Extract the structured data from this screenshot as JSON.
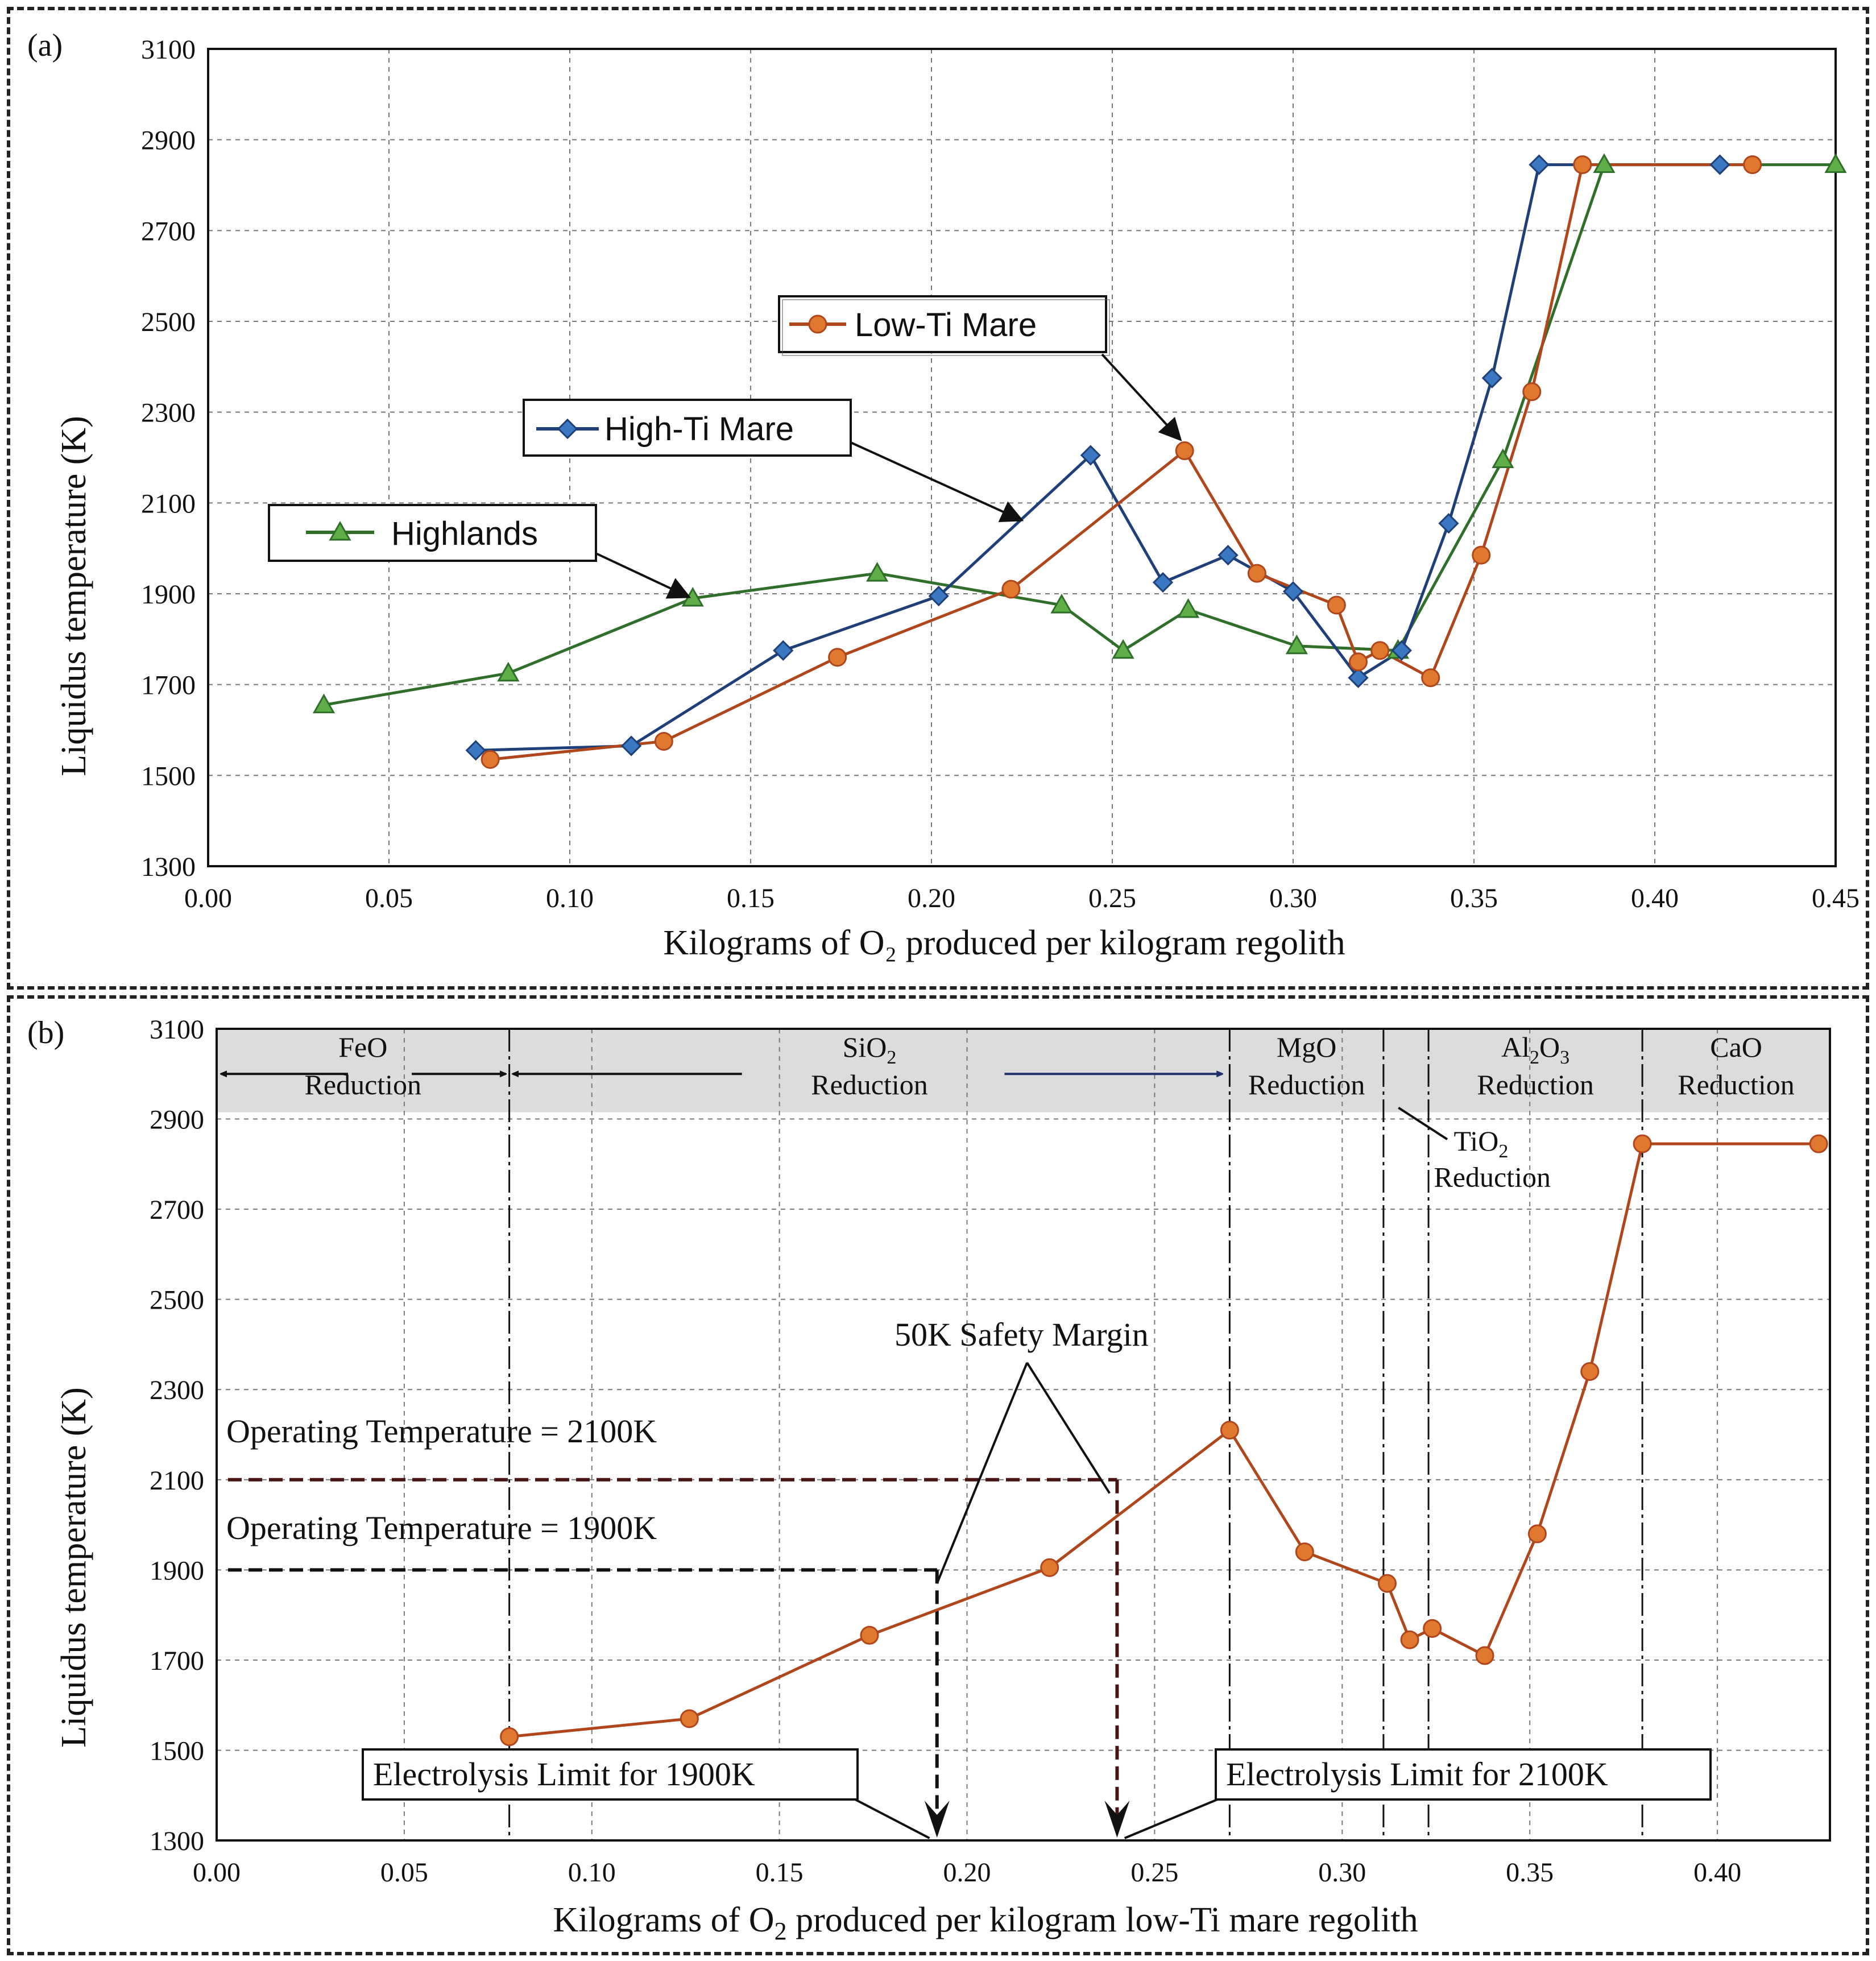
{
  "colors": {
    "high_ti": "#3b78c2",
    "low_ti": "#e0782f",
    "low_ti_line": "#b0471c",
    "highlands": "#5fae47",
    "highlands_line": "#2f6f2a",
    "grid": "#777777",
    "band": "#dcdcdc"
  },
  "chart_data": [
    {
      "panel": "(a)",
      "type": "line",
      "xlabel": "Kilograms of O₂ produced per kilogram regolith",
      "ylabel": "Liquidus temperature (K)",
      "xlim": [
        0.0,
        0.45
      ],
      "ylim": [
        1300,
        3100
      ],
      "xticks": [
        "0.00",
        "0.05",
        "0.10",
        "0.15",
        "0.20",
        "0.25",
        "0.30",
        "0.35",
        "0.40",
        "0.45"
      ],
      "yticks": [
        "1300",
        "1500",
        "1700",
        "1900",
        "2100",
        "2300",
        "2500",
        "2700",
        "2900",
        "3100"
      ],
      "grid": true,
      "series": [
        {
          "name": "High-Ti Mare",
          "marker": "diamond",
          "x": [
            0.074,
            0.117,
            0.159,
            0.202,
            0.244,
            0.264,
            0.282,
            0.3,
            0.318,
            0.33,
            0.343,
            0.355,
            0.368,
            0.418
          ],
          "y": [
            1555,
            1565,
            1775,
            1895,
            2205,
            1925,
            1985,
            1905,
            1715,
            1775,
            2055,
            2375,
            2845,
            2845
          ]
        },
        {
          "name": "Low-Ti Mare",
          "marker": "circle",
          "x": [
            0.078,
            0.126,
            0.174,
            0.222,
            0.27,
            0.29,
            0.312,
            0.318,
            0.324,
            0.338,
            0.352,
            0.366,
            0.38,
            0.427
          ],
          "y": [
            1535,
            1575,
            1760,
            1910,
            2215,
            1945,
            1875,
            1750,
            1775,
            1715,
            1985,
            2345,
            2845,
            2845
          ]
        },
        {
          "name": "Highlands",
          "marker": "triangle",
          "x": [
            0.032,
            0.083,
            0.134,
            0.185,
            0.236,
            0.253,
            0.271,
            0.301,
            0.329,
            0.358,
            0.386,
            0.45
          ],
          "y": [
            1655,
            1725,
            1890,
            1945,
            1875,
            1775,
            1865,
            1785,
            1775,
            2195,
            2845,
            2845
          ]
        }
      ],
      "legend": [
        {
          "label": "Low-Ti Mare",
          "series": "Low-Ti Mare"
        },
        {
          "label": "High-Ti Mare",
          "series": "High-Ti Mare"
        },
        {
          "label": "Highlands",
          "series": "Highlands"
        }
      ]
    },
    {
      "panel": "(b)",
      "type": "line",
      "xlabel_main": "Kilograms of O",
      "xlabel_sub": "2",
      "xlabel_rest": " produced per kilogram low-Ti mare regolith",
      "ylabel": "Liquidus temperature (K)",
      "xlim": [
        0.0,
        0.43
      ],
      "ylim": [
        1300,
        3100
      ],
      "xticks": [
        "0.00",
        "0.05",
        "0.10",
        "0.15",
        "0.20",
        "0.25",
        "0.30",
        "0.35",
        "0.40"
      ],
      "yticks": [
        "1300",
        "1500",
        "1700",
        "1900",
        "2100",
        "2300",
        "2500",
        "2700",
        "2900",
        "3100"
      ],
      "grid": true,
      "series": [
        {
          "name": "Low-Ti Mare",
          "marker": "circle",
          "x": [
            0.078,
            0.126,
            0.174,
            0.222,
            0.27,
            0.29,
            0.312,
            0.318,
            0.324,
            0.338,
            0.352,
            0.366,
            0.38,
            0.427
          ],
          "y": [
            1530,
            1570,
            1755,
            1905,
            2210,
            1940,
            1870,
            1745,
            1770,
            1710,
            1980,
            2340,
            2845,
            2845
          ]
        }
      ],
      "region_boundaries": [
        0.078,
        0.27,
        0.311,
        0.323,
        0.38
      ],
      "regions": [
        {
          "line1": "FeO",
          "line2": "Reduction",
          "from": 0.0,
          "to": 0.078
        },
        {
          "line1": "SiO",
          "line1_sub": "2",
          "line2": "Reduction",
          "from": 0.078,
          "to": 0.27
        },
        {
          "line1": "MgO",
          "line2": "Reduction",
          "from": 0.27,
          "to": 0.311
        },
        {
          "line1": "Al",
          "line1_sub": "2",
          "line1_mid": "O",
          "line1_sub2": "3",
          "line2": "Reduction",
          "from": 0.323,
          "to": 0.38
        },
        {
          "line1": "CaO",
          "line2": "Reduction",
          "from": 0.38,
          "to": 0.43
        }
      ],
      "tio2_label": {
        "line1": "TiO",
        "line1_sub": "2",
        "line2": "Reduction"
      },
      "annotations": {
        "op_2100": "Operating Temperature = 2100K",
        "op_1900": "Operating Temperature = 1900K",
        "safety": "50K Safety Margin",
        "limit_1900": "Electrolysis Limit for 1900K",
        "limit_2100": "Electrolysis Limit for 2100K"
      },
      "operating_temps": [
        2100,
        1900
      ],
      "electrolysis_limits_x": [
        0.192,
        0.24
      ]
    }
  ],
  "panel_labels": [
    "(a)",
    "(b)"
  ]
}
